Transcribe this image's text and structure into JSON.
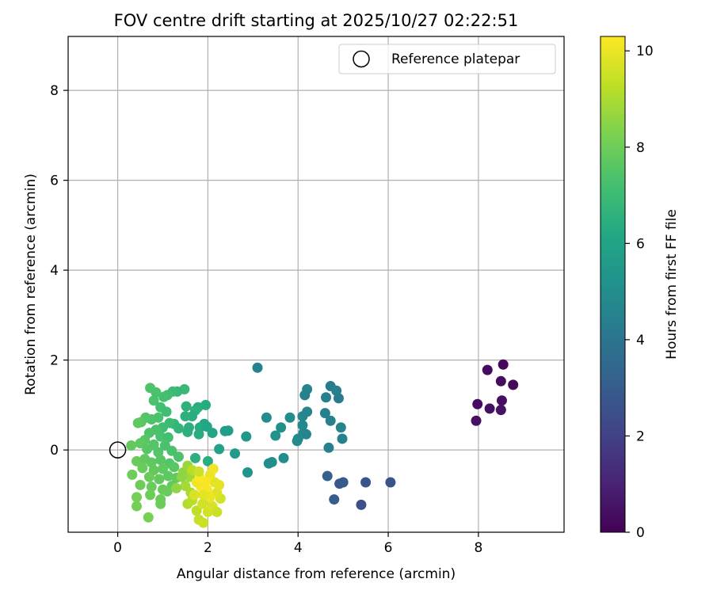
{
  "chart_data": {
    "type": "scatter",
    "title": "FOV centre drift starting at 2025/10/27 02:22:51",
    "xlabel": "Angular distance from reference (arcmin)",
    "ylabel": "Rotation from reference (arcmin)",
    "xlim": [
      -1.1,
      9.9
    ],
    "ylim": [
      -1.83,
      9.2
    ],
    "xticks": [
      0,
      2,
      4,
      6,
      8
    ],
    "yticks": [
      0,
      2,
      4,
      6,
      8
    ],
    "grid": true,
    "legend": {
      "position": "upper right",
      "entries": [
        "Reference platepar"
      ]
    },
    "colorbar": {
      "label": "Hours from first FF file",
      "min": 0,
      "max": 10.3,
      "ticks": [
        0,
        2,
        4,
        6,
        8,
        10
      ],
      "colormap": "viridis"
    },
    "reference_point": {
      "x": 0,
      "y": 0,
      "label": "Reference platepar"
    },
    "points": [
      {
        "x": 8.55,
        "y": 1.9,
        "c": 0.2
      },
      {
        "x": 8.2,
        "y": 1.78,
        "c": 0.3
      },
      {
        "x": 8.77,
        "y": 1.45,
        "c": 0.25
      },
      {
        "x": 8.5,
        "y": 1.53,
        "c": 0.35
      },
      {
        "x": 8.52,
        "y": 1.1,
        "c": 0.4
      },
      {
        "x": 7.98,
        "y": 1.02,
        "c": 0.3
      },
      {
        "x": 8.25,
        "y": 0.92,
        "c": 0.45
      },
      {
        "x": 8.5,
        "y": 0.89,
        "c": 0.5
      },
      {
        "x": 7.95,
        "y": 0.65,
        "c": 0.4
      },
      {
        "x": 6.05,
        "y": -0.72,
        "c": 2.6
      },
      {
        "x": 5.5,
        "y": -0.72,
        "c": 2.7
      },
      {
        "x": 5.4,
        "y": -1.22,
        "c": 2.5
      },
      {
        "x": 4.92,
        "y": -0.75,
        "c": 2.8
      },
      {
        "x": 5.0,
        "y": -0.72,
        "c": 2.9
      },
      {
        "x": 4.8,
        "y": -1.1,
        "c": 3.0
      },
      {
        "x": 4.65,
        "y": -0.58,
        "c": 3.2
      },
      {
        "x": 3.1,
        "y": 1.83,
        "c": 4.5
      },
      {
        "x": 4.72,
        "y": 1.42,
        "c": 4.3
      },
      {
        "x": 4.85,
        "y": 1.32,
        "c": 4.4
      },
      {
        "x": 4.2,
        "y": 1.35,
        "c": 4.6
      },
      {
        "x": 4.15,
        "y": 1.22,
        "c": 4.5
      },
      {
        "x": 4.62,
        "y": 1.17,
        "c": 4.4
      },
      {
        "x": 4.9,
        "y": 1.15,
        "c": 4.3
      },
      {
        "x": 4.1,
        "y": 0.75,
        "c": 4.7
      },
      {
        "x": 4.2,
        "y": 0.85,
        "c": 4.6
      },
      {
        "x": 4.6,
        "y": 0.82,
        "c": 4.5
      },
      {
        "x": 4.72,
        "y": 0.65,
        "c": 4.4
      },
      {
        "x": 4.1,
        "y": 0.55,
        "c": 4.8
      },
      {
        "x": 4.95,
        "y": 0.5,
        "c": 4.6
      },
      {
        "x": 4.12,
        "y": 0.38,
        "c": 4.7
      },
      {
        "x": 4.18,
        "y": 0.35,
        "c": 4.6
      },
      {
        "x": 4.0,
        "y": 0.25,
        "c": 4.8
      },
      {
        "x": 4.98,
        "y": 0.25,
        "c": 4.5
      },
      {
        "x": 4.68,
        "y": 0.05,
        "c": 4.4
      },
      {
        "x": 3.3,
        "y": 0.72,
        "c": 5.0
      },
      {
        "x": 3.82,
        "y": 0.72,
        "c": 5.0
      },
      {
        "x": 3.62,
        "y": 0.5,
        "c": 5.1
      },
      {
        "x": 3.5,
        "y": 0.32,
        "c": 5.2
      },
      {
        "x": 3.98,
        "y": 0.2,
        "c": 4.9
      },
      {
        "x": 3.68,
        "y": -0.18,
        "c": 5.0
      },
      {
        "x": 3.42,
        "y": -0.27,
        "c": 5.1
      },
      {
        "x": 3.35,
        "y": -0.3,
        "c": 5.0
      },
      {
        "x": 2.88,
        "y": -0.5,
        "c": 5.3
      },
      {
        "x": 2.85,
        "y": 0.3,
        "c": 5.5
      },
      {
        "x": 2.6,
        "y": -0.08,
        "c": 5.6
      },
      {
        "x": 2.38,
        "y": 0.42,
        "c": 5.8
      },
      {
        "x": 2.45,
        "y": 0.43,
        "c": 5.7
      },
      {
        "x": 2.25,
        "y": 0.02,
        "c": 5.9
      },
      {
        "x": 2.1,
        "y": 0.38,
        "c": 6.0
      },
      {
        "x": 1.95,
        "y": 1.0,
        "c": 6.3
      },
      {
        "x": 1.78,
        "y": 0.95,
        "c": 6.4
      },
      {
        "x": 1.72,
        "y": 0.88,
        "c": 6.5
      },
      {
        "x": 1.52,
        "y": 0.97,
        "c": 6.6
      },
      {
        "x": 1.48,
        "y": 1.35,
        "c": 6.9
      },
      {
        "x": 1.32,
        "y": 1.3,
        "c": 6.8
      },
      {
        "x": 1.22,
        "y": 1.3,
        "c": 7.0
      },
      {
        "x": 1.65,
        "y": 0.75,
        "c": 6.4
      },
      {
        "x": 1.5,
        "y": 0.75,
        "c": 6.5
      },
      {
        "x": 1.92,
        "y": 0.58,
        "c": 6.2
      },
      {
        "x": 1.82,
        "y": 0.5,
        "c": 6.3
      },
      {
        "x": 1.58,
        "y": 0.5,
        "c": 6.5
      },
      {
        "x": 1.98,
        "y": 0.52,
        "c": 6.1
      },
      {
        "x": 1.8,
        "y": 0.35,
        "c": 6.4
      },
      {
        "x": 1.55,
        "y": 0.4,
        "c": 6.5
      },
      {
        "x": 1.35,
        "y": 0.48,
        "c": 6.7
      },
      {
        "x": 1.25,
        "y": 0.58,
        "c": 6.8
      },
      {
        "x": 2.0,
        "y": -0.25,
        "c": 6.4
      },
      {
        "x": 1.72,
        "y": -0.18,
        "c": 6.5
      },
      {
        "x": 1.1,
        "y": 1.22,
        "c": 7.1
      },
      {
        "x": 1.02,
        "y": 1.18,
        "c": 7.2
      },
      {
        "x": 0.85,
        "y": 1.28,
        "c": 7.3
      },
      {
        "x": 0.72,
        "y": 1.38,
        "c": 7.4
      },
      {
        "x": 0.8,
        "y": 1.1,
        "c": 7.3
      },
      {
        "x": 0.95,
        "y": 0.95,
        "c": 7.2
      },
      {
        "x": 1.08,
        "y": 0.85,
        "c": 7.1
      },
      {
        "x": 0.9,
        "y": 0.72,
        "c": 7.3
      },
      {
        "x": 0.75,
        "y": 0.68,
        "c": 7.4
      },
      {
        "x": 0.62,
        "y": 0.72,
        "c": 7.5
      },
      {
        "x": 0.52,
        "y": 0.62,
        "c": 7.6
      },
      {
        "x": 0.45,
        "y": 0.6,
        "c": 7.7
      },
      {
        "x": 1.15,
        "y": 0.6,
        "c": 7.0
      },
      {
        "x": 1.0,
        "y": 0.5,
        "c": 7.1
      },
      {
        "x": 0.85,
        "y": 0.45,
        "c": 7.3
      },
      {
        "x": 0.7,
        "y": 0.38,
        "c": 7.4
      },
      {
        "x": 0.95,
        "y": 0.3,
        "c": 7.3
      },
      {
        "x": 1.12,
        "y": 0.28,
        "c": 7.2
      },
      {
        "x": 0.6,
        "y": 0.22,
        "c": 7.6
      },
      {
        "x": 0.5,
        "y": 0.15,
        "c": 7.7
      },
      {
        "x": 0.8,
        "y": 0.12,
        "c": 7.5
      },
      {
        "x": 1.05,
        "y": 0.1,
        "c": 7.3
      },
      {
        "x": 0.3,
        "y": 0.1,
        "c": 7.8
      },
      {
        "x": 0.65,
        "y": 0.02,
        "c": 7.6
      },
      {
        "x": 0.9,
        "y": -0.05,
        "c": 7.5
      },
      {
        "x": 1.2,
        "y": -0.02,
        "c": 7.3
      },
      {
        "x": 0.42,
        "y": -0.25,
        "c": 7.9
      },
      {
        "x": 0.6,
        "y": -0.2,
        "c": 7.8
      },
      {
        "x": 0.75,
        "y": -0.28,
        "c": 7.7
      },
      {
        "x": 0.95,
        "y": -0.22,
        "c": 7.6
      },
      {
        "x": 1.15,
        "y": -0.3,
        "c": 7.5
      },
      {
        "x": 1.35,
        "y": -0.15,
        "c": 7.4
      },
      {
        "x": 0.55,
        "y": -0.4,
        "c": 7.9
      },
      {
        "x": 0.8,
        "y": -0.45,
        "c": 7.8
      },
      {
        "x": 1.0,
        "y": -0.42,
        "c": 7.7
      },
      {
        "x": 1.25,
        "y": -0.38,
        "c": 7.6
      },
      {
        "x": 0.32,
        "y": -0.55,
        "c": 8.0
      },
      {
        "x": 0.7,
        "y": -0.6,
        "c": 7.9
      },
      {
        "x": 0.92,
        "y": -0.65,
        "c": 7.8
      },
      {
        "x": 1.12,
        "y": -0.58,
        "c": 7.7
      },
      {
        "x": 0.5,
        "y": -0.78,
        "c": 8.0
      },
      {
        "x": 0.75,
        "y": -0.82,
        "c": 7.9
      },
      {
        "x": 1.0,
        "y": -0.88,
        "c": 7.9
      },
      {
        "x": 1.2,
        "y": -0.8,
        "c": 7.8
      },
      {
        "x": 0.42,
        "y": -1.05,
        "c": 8.1
      },
      {
        "x": 0.72,
        "y": -1.0,
        "c": 8.0
      },
      {
        "x": 0.95,
        "y": -1.1,
        "c": 7.9
      },
      {
        "x": 0.42,
        "y": -1.25,
        "c": 8.1
      },
      {
        "x": 0.68,
        "y": -1.5,
        "c": 8.2
      },
      {
        "x": 0.95,
        "y": -1.2,
        "c": 8.0
      },
      {
        "x": 1.1,
        "y": -0.92,
        "c": 7.9
      },
      {
        "x": 1.3,
        "y": -0.62,
        "c": 7.8
      },
      {
        "x": 1.45,
        "y": -0.5,
        "c": 8.6
      },
      {
        "x": 1.55,
        "y": -0.35,
        "c": 8.7
      },
      {
        "x": 1.6,
        "y": -0.6,
        "c": 8.8
      },
      {
        "x": 1.5,
        "y": -0.8,
        "c": 8.9
      },
      {
        "x": 1.62,
        "y": -0.95,
        "c": 9.0
      },
      {
        "x": 1.55,
        "y": -1.2,
        "c": 9.1
      },
      {
        "x": 1.65,
        "y": -1.12,
        "c": 9.2
      },
      {
        "x": 1.75,
        "y": -1.35,
        "c": 9.3
      },
      {
        "x": 1.8,
        "y": -1.55,
        "c": 9.4
      },
      {
        "x": 1.9,
        "y": -1.62,
        "c": 9.5
      },
      {
        "x": 2.0,
        "y": -1.38,
        "c": 9.6
      },
      {
        "x": 2.1,
        "y": -1.25,
        "c": 9.7
      },
      {
        "x": 2.2,
        "y": -1.38,
        "c": 9.5
      },
      {
        "x": 2.28,
        "y": -1.08,
        "c": 9.6
      },
      {
        "x": 2.2,
        "y": -0.95,
        "c": 9.8
      },
      {
        "x": 2.15,
        "y": -0.72,
        "c": 9.9
      },
      {
        "x": 2.05,
        "y": -0.55,
        "c": 10.0
      },
      {
        "x": 2.12,
        "y": -0.42,
        "c": 10.1
      },
      {
        "x": 1.95,
        "y": -0.7,
        "c": 10.2
      },
      {
        "x": 1.85,
        "y": -0.82,
        "c": 10.2
      },
      {
        "x": 1.75,
        "y": -0.72,
        "c": 10.1
      },
      {
        "x": 1.82,
        "y": -0.62,
        "c": 10.3
      },
      {
        "x": 1.98,
        "y": -0.88,
        "c": 10.2
      },
      {
        "x": 2.05,
        "y": -1.05,
        "c": 10.0
      },
      {
        "x": 1.9,
        "y": -1.0,
        "c": 9.9
      },
      {
        "x": 2.25,
        "y": -0.78,
        "c": 9.9
      },
      {
        "x": 1.7,
        "y": -1.0,
        "c": 9.7
      },
      {
        "x": 1.42,
        "y": -0.6,
        "c": 8.5
      },
      {
        "x": 1.3,
        "y": -0.85,
        "c": 8.6
      },
      {
        "x": 1.65,
        "y": -0.45,
        "c": 9.2
      },
      {
        "x": 1.8,
        "y": -0.48,
        "c": 9.5
      },
      {
        "x": 1.88,
        "y": -1.2,
        "c": 9.6
      }
    ]
  }
}
